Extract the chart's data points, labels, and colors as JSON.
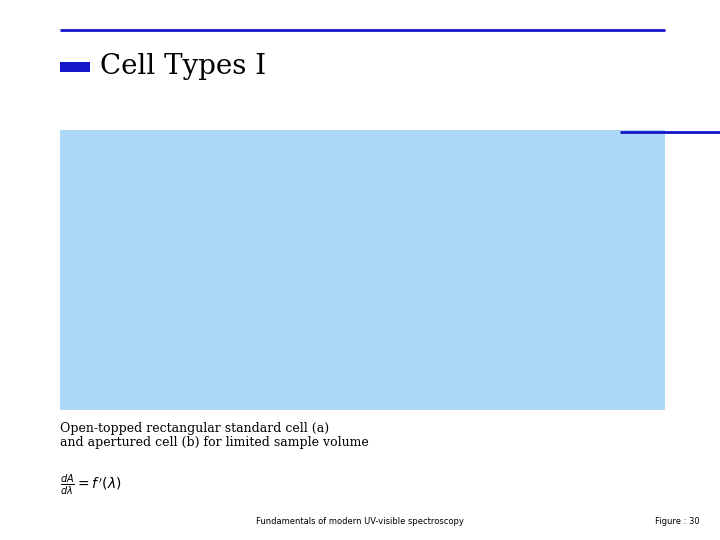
{
  "title": "Cell Types I",
  "title_fontsize": 20,
  "title_color": "#000000",
  "title_font": "serif",
  "bg_color": "#ffffff",
  "line_color": "#1515cc",
  "blue_rect_color": "#add8f7",
  "caption_line1": "Open-topped rectangular standard cell (a)",
  "caption_line2": "and apertured cell (b) for limited sample volume",
  "caption_fontsize": 9,
  "footer_center_text": "Fundamentals of modern UV-visible spectroscopy",
  "footer_right_text": "Figure : 30",
  "footer_fontsize": 6
}
